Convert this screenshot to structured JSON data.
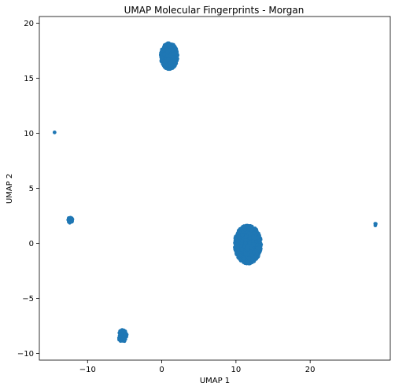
{
  "chart_data": {
    "type": "scatter",
    "title": "UMAP Molecular Fingerprints - Morgan",
    "xlabel": "UMAP 1",
    "ylabel": "UMAP 2",
    "xlim": [
      -16.5,
      30.8
    ],
    "ylim": [
      -10.6,
      20.6
    ],
    "xticks": [
      -10,
      0,
      10,
      20
    ],
    "yticks": [
      -10,
      -5,
      0,
      5,
      10,
      15,
      20
    ],
    "tick_labels_x": [
      "−10",
      "0",
      "10",
      "20"
    ],
    "tick_labels_y": [
      "−10",
      "−5",
      "0",
      "5",
      "10",
      "15",
      "20"
    ],
    "grid": false,
    "legend": "none",
    "marker_color": "#1f77b4",
    "clusters": [
      {
        "center": [
          1.0,
          17.0
        ],
        "spread": [
          2.3,
          2.4
        ],
        "points": 650
      },
      {
        "center": [
          11.6,
          -0.1
        ],
        "spread": [
          3.6,
          3.5
        ],
        "points": 1300
      },
      {
        "center": [
          -5.3,
          -8.4
        ],
        "spread": [
          1.2,
          1.1
        ],
        "points": 90
      },
      {
        "center": [
          -12.3,
          2.1
        ],
        "spread": [
          0.7,
          0.6
        ],
        "points": 22
      },
      {
        "center": [
          -14.4,
          10.1
        ],
        "spread": [
          0.15,
          0.15
        ],
        "points": 2
      },
      {
        "center": [
          28.8,
          1.7
        ],
        "spread": [
          0.15,
          0.2
        ],
        "points": 3
      }
    ]
  }
}
